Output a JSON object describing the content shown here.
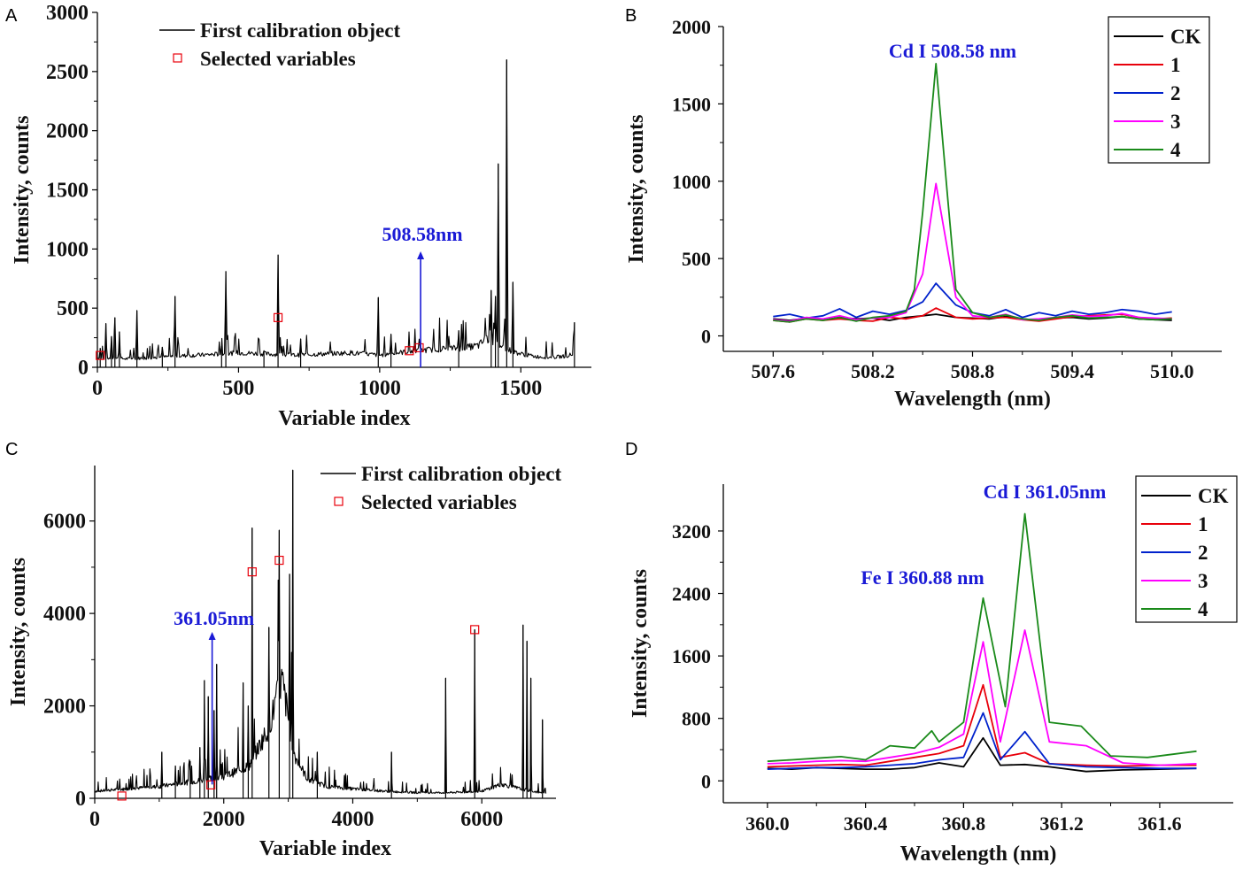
{
  "colors": {
    "CK": "#000000",
    "1": "#e8000b",
    "2": "#0022cc",
    "3": "#ff00ff",
    "4": "#1a8a1a",
    "marker": "#e8000b",
    "annot": "#1a1ad6"
  },
  "chart_data": [
    {
      "panel": "A",
      "type": "line",
      "xlabel": "Variable index",
      "ylabel": "Intensity, counts",
      "xlim": [
        0,
        1750
      ],
      "ylim": [
        0,
        3000
      ],
      "xticks": [
        0,
        500,
        1000,
        1500
      ],
      "yticks": [
        0,
        500,
        1000,
        1500,
        2000,
        2500,
        3000
      ],
      "legend": {
        "line": "First calibration object",
        "marker": "Selected variables",
        "position": "top-center"
      },
      "annotation": {
        "text": "508.58nm",
        "x": 1145,
        "y_from": 0,
        "y_to": 980
      },
      "baseline": {
        "x": [
          0,
          100,
          200,
          300,
          400,
          500,
          600,
          700,
          800,
          900,
          1000,
          1100,
          1200,
          1300,
          1350,
          1380,
          1450,
          1500,
          1550,
          1600,
          1650,
          1690
        ],
        "y": [
          80,
          70,
          80,
          95,
          105,
          120,
          110,
          100,
          110,
          120,
          100,
          130,
          150,
          160,
          180,
          240,
          150,
          110,
          90,
          80,
          90,
          110
        ]
      },
      "peaks": [
        {
          "x": 10,
          "y": 160
        },
        {
          "x": 30,
          "y": 370
        },
        {
          "x": 50,
          "y": 260
        },
        {
          "x": 62,
          "y": 420
        },
        {
          "x": 78,
          "y": 300
        },
        {
          "x": 140,
          "y": 480
        },
        {
          "x": 230,
          "y": 170
        },
        {
          "x": 275,
          "y": 600
        },
        {
          "x": 440,
          "y": 180
        },
        {
          "x": 455,
          "y": 810
        },
        {
          "x": 590,
          "y": 140
        },
        {
          "x": 640,
          "y": 950
        },
        {
          "x": 720,
          "y": 240
        },
        {
          "x": 995,
          "y": 590
        },
        {
          "x": 1040,
          "y": 280
        },
        {
          "x": 1280,
          "y": 310
        },
        {
          "x": 1395,
          "y": 650
        },
        {
          "x": 1410,
          "y": 600
        },
        {
          "x": 1420,
          "y": 1720
        },
        {
          "x": 1450,
          "y": 2600
        },
        {
          "x": 1472,
          "y": 720
        },
        {
          "x": 1690,
          "y": 380
        }
      ],
      "selected": {
        "x": [
          10,
          640,
          1105,
          1140
        ],
        "y": [
          100,
          420,
          140,
          165
        ]
      }
    },
    {
      "panel": "B",
      "type": "line",
      "title": "Cd I 508.58 nm",
      "xlabel": "Wavelength (nm)",
      "ylabel": "Intensity, counts",
      "xlim": [
        507.3,
        510.3
      ],
      "ylim": [
        -100,
        2000
      ],
      "xticks": [
        507.6,
        508.2,
        508.8,
        509.4,
        510.0
      ],
      "yticks": [
        0,
        500,
        1000,
        1500,
        2000
      ],
      "legend": {
        "position": "top-right",
        "entries": [
          "CK",
          "1",
          "2",
          "3",
          "4"
        ]
      },
      "series": [
        {
          "name": "CK",
          "x": [
            507.6,
            507.7,
            507.8,
            507.9,
            508.0,
            508.1,
            508.2,
            508.3,
            508.4,
            508.5,
            508.58,
            508.7,
            508.8,
            508.9,
            509.0,
            509.1,
            509.2,
            509.3,
            509.4,
            509.5,
            509.6,
            509.7,
            509.8,
            509.9,
            510.0
          ],
          "y": [
            110,
            100,
            115,
            105,
            120,
            110,
            115,
            100,
            120,
            130,
            140,
            120,
            115,
            110,
            125,
            110,
            100,
            115,
            120,
            110,
            115,
            125,
            110,
            105,
            100
          ]
        },
        {
          "name": "1",
          "x": [
            507.6,
            507.7,
            507.8,
            507.9,
            508.0,
            508.1,
            508.2,
            508.3,
            508.4,
            508.5,
            508.58,
            508.7,
            508.8,
            508.9,
            509.0,
            509.1,
            509.2,
            509.3,
            509.4,
            509.5,
            509.6,
            509.7,
            509.8,
            509.9,
            510.0
          ],
          "y": [
            100,
            90,
            110,
            100,
            110,
            100,
            95,
            120,
            110,
            130,
            180,
            120,
            110,
            115,
            120,
            105,
            95,
            110,
            125,
            130,
            135,
            140,
            120,
            110,
            115
          ]
        },
        {
          "name": "2",
          "x": [
            507.6,
            507.7,
            507.8,
            507.9,
            508.0,
            508.1,
            508.2,
            508.3,
            508.4,
            508.5,
            508.58,
            508.7,
            508.8,
            508.9,
            509.0,
            509.1,
            509.2,
            509.3,
            509.4,
            509.5,
            509.6,
            509.7,
            509.8,
            509.9,
            510.0
          ],
          "y": [
            125,
            140,
            115,
            130,
            175,
            120,
            160,
            140,
            165,
            220,
            340,
            200,
            150,
            130,
            170,
            120,
            150,
            130,
            160,
            140,
            150,
            170,
            160,
            140,
            155
          ]
        },
        {
          "name": "3",
          "x": [
            507.6,
            507.7,
            507.8,
            507.9,
            508.0,
            508.1,
            508.2,
            508.3,
            508.4,
            508.5,
            508.58,
            508.7,
            508.8,
            508.9,
            509.0,
            509.1,
            509.2,
            509.3,
            509.4,
            509.5,
            509.6,
            509.7,
            509.8,
            509.9,
            510.0
          ],
          "y": [
            105,
            95,
            120,
            110,
            130,
            105,
            115,
            120,
            150,
            400,
            985,
            250,
            130,
            120,
            140,
            105,
            110,
            120,
            135,
            125,
            130,
            145,
            120,
            115,
            110
          ]
        },
        {
          "name": "4",
          "x": [
            507.6,
            507.7,
            507.8,
            507.9,
            508.0,
            508.1,
            508.2,
            508.3,
            508.4,
            508.45,
            508.5,
            508.58,
            508.65,
            508.7,
            508.8,
            508.9,
            509.0,
            509.1,
            509.2,
            509.3,
            509.4,
            509.5,
            509.6,
            509.7,
            509.8,
            509.9,
            510.0
          ],
          "y": [
            100,
            90,
            110,
            100,
            120,
            95,
            120,
            130,
            160,
            300,
            800,
            1760,
            900,
            300,
            150,
            120,
            135,
            110,
            100,
            120,
            130,
            115,
            120,
            125,
            110,
            105,
            110
          ]
        }
      ]
    },
    {
      "panel": "C",
      "type": "line",
      "xlabel": "Variable index",
      "ylabel": "Intensity, counts",
      "xlim": [
        0,
        7150
      ],
      "ylim": [
        0,
        7200
      ],
      "xticks": [
        0,
        2000,
        4000,
        6000
      ],
      "yticks": [
        0,
        2000,
        4000,
        6000
      ],
      "legend": {
        "line": "First calibration object",
        "marker": "Selected variables",
        "position": "top-right"
      },
      "annotation": {
        "text": "361.05nm",
        "x": 1820,
        "y_from": 300,
        "y_to": 3600
      },
      "baseline": {
        "x": [
          0,
          500,
          1000,
          1500,
          2000,
          2400,
          2700,
          2900,
          3100,
          3300,
          3600,
          4000,
          4500,
          5000,
          5500,
          6000,
          6300,
          6600,
          6900,
          7000
        ],
        "y": [
          150,
          200,
          250,
          350,
          450,
          700,
          1500,
          2500,
          900,
          400,
          250,
          200,
          150,
          120,
          120,
          150,
          300,
          200,
          120,
          100
        ]
      },
      "peaks": [
        {
          "x": 1040,
          "y": 1000
        },
        {
          "x": 1250,
          "y": 700
        },
        {
          "x": 1480,
          "y": 800
        },
        {
          "x": 1630,
          "y": 1100
        },
        {
          "x": 1700,
          "y": 2550
        },
        {
          "x": 1760,
          "y": 2200
        },
        {
          "x": 1850,
          "y": 1900
        },
        {
          "x": 1890,
          "y": 2900
        },
        {
          "x": 2300,
          "y": 2500
        },
        {
          "x": 2380,
          "y": 2000
        },
        {
          "x": 2440,
          "y": 5850
        },
        {
          "x": 2700,
          "y": 3700
        },
        {
          "x": 2860,
          "y": 5800
        },
        {
          "x": 3020,
          "y": 4850
        },
        {
          "x": 3070,
          "y": 7100
        },
        {
          "x": 3450,
          "y": 1000
        },
        {
          "x": 4600,
          "y": 1000
        },
        {
          "x": 5440,
          "y": 2600
        },
        {
          "x": 5890,
          "y": 3650
        },
        {
          "x": 6640,
          "y": 3750
        },
        {
          "x": 6700,
          "y": 3400
        },
        {
          "x": 6760,
          "y": 2600
        },
        {
          "x": 6940,
          "y": 1700
        }
      ],
      "selected": {
        "x": [
          420,
          1800,
          2440,
          2860,
          5890
        ],
        "y": [
          50,
          290,
          4900,
          5150,
          3650
        ]
      }
    },
    {
      "panel": "D",
      "type": "line",
      "annotations": [
        "Cd I 361.05nm",
        "Fe I 360.88 nm"
      ],
      "xlabel": "Wavelength (nm)",
      "ylabel": "Intensity, counts",
      "xlim": [
        359.82,
        361.9
      ],
      "ylim": [
        -280,
        3800
      ],
      "xticks": [
        360.0,
        360.4,
        360.8,
        361.2,
        361.6
      ],
      "yticks": [
        0,
        800,
        1600,
        2400,
        3200
      ],
      "legend": {
        "position": "top-right",
        "entries": [
          "CK",
          "1",
          "2",
          "3",
          "4"
        ]
      },
      "series": [
        {
          "name": "CK",
          "x": [
            360.0,
            360.1,
            360.2,
            360.3,
            360.4,
            360.5,
            360.6,
            360.7,
            360.8,
            360.88,
            360.95,
            361.05,
            361.15,
            361.3,
            361.45,
            361.6,
            361.75
          ],
          "y": [
            160,
            150,
            170,
            160,
            150,
            150,
            170,
            230,
            180,
            550,
            200,
            210,
            180,
            120,
            140,
            150,
            160
          ]
        },
        {
          "name": "1",
          "x": [
            360.0,
            360.1,
            360.2,
            360.3,
            360.4,
            360.5,
            360.6,
            360.7,
            360.8,
            360.88,
            360.95,
            361.05,
            361.15,
            361.3,
            361.45,
            361.6,
            361.75
          ],
          "y": [
            180,
            190,
            200,
            210,
            200,
            250,
            300,
            350,
            450,
            1230,
            300,
            360,
            220,
            200,
            190,
            200,
            200
          ]
        },
        {
          "name": "2",
          "x": [
            360.0,
            360.1,
            360.2,
            360.3,
            360.4,
            360.5,
            360.6,
            360.7,
            360.8,
            360.88,
            360.95,
            361.05,
            361.15,
            361.3,
            361.45,
            361.6,
            361.75
          ],
          "y": [
            150,
            160,
            170,
            170,
            180,
            200,
            220,
            270,
            300,
            870,
            270,
            630,
            220,
            180,
            170,
            160,
            160
          ]
        },
        {
          "name": "3",
          "x": [
            360.0,
            360.1,
            360.2,
            360.3,
            360.4,
            360.5,
            360.6,
            360.7,
            360.8,
            360.88,
            360.95,
            361.05,
            361.15,
            361.3,
            361.45,
            361.6,
            361.75
          ],
          "y": [
            220,
            230,
            250,
            260,
            250,
            300,
            350,
            430,
            600,
            1780,
            500,
            1930,
            500,
            450,
            230,
            200,
            220
          ]
        },
        {
          "name": "4",
          "x": [
            360.0,
            360.1,
            360.2,
            360.3,
            360.4,
            360.5,
            360.6,
            360.67,
            360.7,
            360.8,
            360.88,
            360.97,
            361.05,
            361.15,
            361.28,
            361.4,
            361.55,
            361.75
          ],
          "y": [
            250,
            270,
            290,
            310,
            270,
            450,
            420,
            640,
            500,
            750,
            2340,
            950,
            3420,
            750,
            700,
            320,
            300,
            380
          ]
        }
      ]
    }
  ]
}
